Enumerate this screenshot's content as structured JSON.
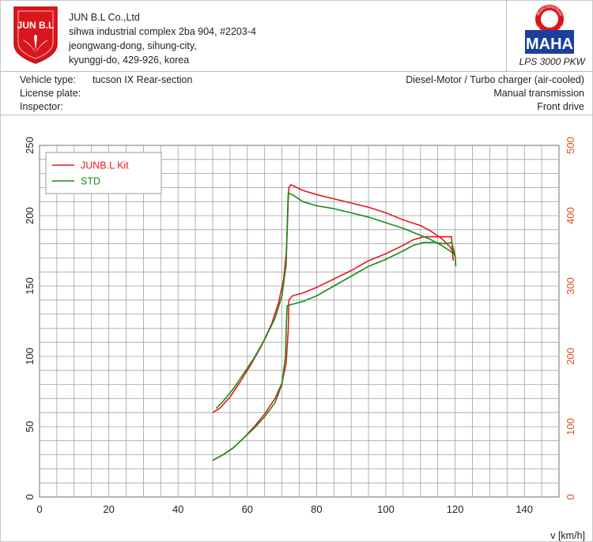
{
  "header": {
    "logo_text": "JUN B.L",
    "company_lines": [
      "JUN B.L Co.,Ltd",
      "sihwa industrial complex 2ba 904, #2203-4",
      "jeongwang-dong, sihung-city,",
      "kyunggi-do, 429-926, korea"
    ],
    "maha_logo_text": "MAHA",
    "maha_ring_top": "Maschinenbau",
    "maha_ring_bottom": "Haldenwang",
    "maha_model": "LPS 3000 PKW"
  },
  "vehicle": {
    "type_label": "Vehicle type:",
    "type_value": "tucson IX Rear-section",
    "plate_label": "License plate:",
    "inspector_label": "Inspector:",
    "engine": "Diesel-Motor / Turbo charger (air-cooled)",
    "transmission": "Manual transmission",
    "drive": "Front drive"
  },
  "colors": {
    "kit": "#e8191f",
    "std": "#1a8a1a",
    "right_axis": "#e0501c",
    "grid": "#a0a0a0"
  },
  "chart_data": {
    "type": "line",
    "xlabel": "v [km/h]",
    "xlim": [
      0,
      150
    ],
    "x_ticks": [
      0,
      20,
      40,
      60,
      80,
      100,
      120,
      140
    ],
    "ylim_left": [
      0,
      250
    ],
    "y_ticks_left": [
      0,
      50,
      100,
      150,
      200,
      250
    ],
    "ylim_right": [
      0,
      500
    ],
    "y_ticks_right": [
      0,
      100,
      200,
      300,
      400,
      500
    ],
    "grid": true,
    "legend_position": "top-left",
    "series": [
      {
        "name": "JUNB.L Kit",
        "color": "#e8191f",
        "curves": [
          [
            [
              50,
              60
            ],
            [
              52,
              63
            ],
            [
              55,
              71
            ],
            [
              58,
              82
            ],
            [
              61,
              94
            ],
            [
              64,
              107
            ],
            [
              67,
              123
            ],
            [
              69,
              138
            ],
            [
              70.5,
              155
            ],
            [
              71.3,
              175
            ],
            [
              71.8,
              210
            ],
            [
              72,
              220
            ],
            [
              72.5,
              222
            ],
            [
              73.5,
              221
            ],
            [
              76,
              218
            ],
            [
              80,
              215
            ],
            [
              85,
              212
            ],
            [
              90,
              209
            ],
            [
              95,
              206
            ],
            [
              100,
              202
            ],
            [
              105,
              197
            ],
            [
              110,
              193
            ],
            [
              113,
              189
            ],
            [
              116,
              184
            ],
            [
              118.5,
              178
            ],
            [
              119.5,
              174
            ],
            [
              120,
              171
            ]
          ],
          [
            [
              50,
              26
            ],
            [
              53,
              30
            ],
            [
              56,
              35
            ],
            [
              59,
              42
            ],
            [
              62,
              50
            ],
            [
              65,
              59
            ],
            [
              68,
              70
            ],
            [
              70,
              81
            ],
            [
              71.2,
              95
            ],
            [
              71.8,
              118
            ],
            [
              72,
              140
            ],
            [
              73,
              143
            ],
            [
              76,
              145
            ],
            [
              80,
              149
            ],
            [
              85,
              155
            ],
            [
              90,
              161
            ],
            [
              95,
              168
            ],
            [
              100,
              173
            ],
            [
              105,
              179
            ],
            [
              108,
              183
            ],
            [
              111,
              185
            ],
            [
              114,
              185
            ],
            [
              117,
              185
            ],
            [
              119,
              185
            ],
            [
              119.3,
              172
            ],
            [
              119.5,
              168
            ]
          ]
        ]
      },
      {
        "name": "STD",
        "color": "#1a8a1a",
        "curves": [
          [
            [
              51,
              63
            ],
            [
              53,
              68
            ],
            [
              56,
              77
            ],
            [
              59,
              88
            ],
            [
              62,
              99
            ],
            [
              65,
              112
            ],
            [
              68,
              127
            ],
            [
              70,
              143
            ],
            [
              71.2,
              165
            ],
            [
              71.6,
              200
            ],
            [
              71.8,
              216
            ],
            [
              73,
              215
            ],
            [
              76,
              210
            ],
            [
              80,
              207
            ],
            [
              85,
              205
            ],
            [
              90,
              202
            ],
            [
              95,
              199
            ],
            [
              100,
              195
            ],
            [
              105,
              191
            ],
            [
              110,
              186
            ],
            [
              113,
              183
            ],
            [
              116,
              179
            ],
            [
              118.5,
              175
            ],
            [
              120,
              172
            ]
          ],
          [
            [
              50,
              26
            ],
            [
              53,
              30
            ],
            [
              56,
              35
            ],
            [
              59,
              42
            ],
            [
              62,
              49
            ],
            [
              65,
              57
            ],
            [
              68,
              67
            ],
            [
              70,
              80
            ],
            [
              71,
              100
            ],
            [
              71.3,
              125
            ],
            [
              71.5,
              136
            ],
            [
              73,
              137
            ],
            [
              76,
              139
            ],
            [
              80,
              143
            ],
            [
              85,
              150
            ],
            [
              90,
              157
            ],
            [
              95,
              164
            ],
            [
              100,
              169
            ],
            [
              105,
              175
            ],
            [
              108,
              179
            ],
            [
              111,
              181
            ],
            [
              114,
              181
            ],
            [
              117,
              180
            ],
            [
              119,
              181
            ],
            [
              120,
              172
            ],
            [
              120.2,
              164
            ]
          ]
        ]
      }
    ]
  }
}
